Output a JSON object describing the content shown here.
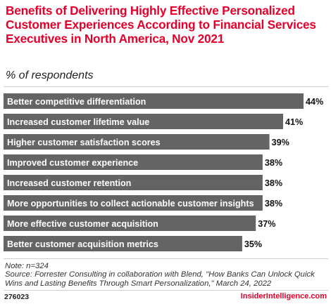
{
  "chart_data": {
    "type": "bar",
    "orientation": "horizontal",
    "title": "Benefits of Delivering Highly Effective Personalized Customer Experiences According to Financial Services Executives in North America, Nov 2021",
    "subtitle": "% of respondents",
    "categories": [
      "Better competitive differentiation",
      "Increased customer lifetime value",
      "Higher customer satisfaction scores",
      "Improved customer experience",
      "Increased customer retention",
      "More opportunities to collect actionable customer insights",
      "More effective customer acquisition",
      "Better customer acquisition metrics"
    ],
    "values": [
      44,
      41,
      39,
      38,
      38,
      38,
      37,
      35
    ],
    "value_labels": [
      "44%",
      "41%",
      "39%",
      "38%",
      "38%",
      "38%",
      "37%",
      "35%"
    ],
    "xlim": [
      0,
      44
    ],
    "bar_color": "#646464",
    "label_color": "#ffffff"
  },
  "note": "Note: n=324",
  "source": "Source: Forrester Consulting in collaboration with Blend, \"How Banks Can Unlock Quick Wins and Lasting Benefits Through Smart Personalization,\" March 24, 2022",
  "footer": {
    "chart_id": "276023",
    "brand": "InsiderIntelligence.com"
  },
  "colors": {
    "accent": "#e4002b",
    "bar": "#646464"
  }
}
